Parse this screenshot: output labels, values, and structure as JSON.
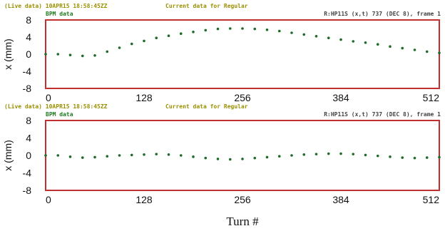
{
  "colors": {
    "status_text": "#9a8f00",
    "series_label": "#1f7a1f",
    "info_text": "#444444",
    "frame": "#c03030",
    "points": "#1f6b2a"
  },
  "panels": [
    {
      "status": "(Live data) 10APR15 18:58:45ZZ",
      "subtitle": "Current data for Regular",
      "series_label": "BPM data",
      "info": "R:HP11S (x,t) 737 (DEC 8), frame 1"
    },
    {
      "status": "(Live data) 10APR15 18:58:45ZZ",
      "subtitle": "Current data for Regular",
      "series_label": "BPM data",
      "info": "R:HP11S (x,t) 737 (DEC 8), frame 1"
    }
  ],
  "chart_data": [
    {
      "type": "scatter",
      "xlabel": "",
      "ylabel": "x (mm)",
      "xlim": [
        0,
        512
      ],
      "ylim": [
        -8,
        8
      ],
      "xticks": [
        "0",
        "128",
        "256",
        "384",
        "512"
      ],
      "yticks": [
        "8",
        "4",
        "0",
        "-4",
        "-8"
      ],
      "grid": false,
      "series": [
        {
          "x": [
            0,
            16,
            32,
            48,
            64,
            80,
            96,
            112,
            128,
            144,
            160,
            176,
            192,
            208,
            224,
            240,
            256,
            272,
            288,
            304,
            320,
            336,
            352,
            368,
            384,
            400,
            416,
            432,
            448,
            464,
            480,
            496,
            512
          ],
          "y": [
            0.0,
            0.0,
            -0.2,
            -0.4,
            -0.3,
            0.6,
            1.5,
            2.4,
            3.1,
            3.8,
            4.3,
            4.8,
            5.2,
            5.6,
            5.9,
            6.0,
            6.0,
            5.9,
            5.7,
            5.4,
            5.0,
            4.6,
            4.2,
            3.8,
            3.4,
            3.0,
            2.7,
            2.3,
            1.8,
            1.4,
            1.0,
            0.6,
            0.3
          ]
        }
      ]
    },
    {
      "type": "scatter",
      "xlabel": "Turn #",
      "ylabel": "x (mm)",
      "xlim": [
        0,
        512
      ],
      "ylim": [
        -8,
        8
      ],
      "xticks": [
        "0",
        "128",
        "256",
        "384",
        "512"
      ],
      "yticks": [
        "8",
        "4",
        "0",
        "-4",
        "-8"
      ],
      "grid": false,
      "series": [
        {
          "x": [
            0,
            16,
            32,
            48,
            64,
            80,
            96,
            112,
            128,
            144,
            160,
            176,
            192,
            208,
            224,
            240,
            256,
            272,
            288,
            304,
            320,
            336,
            352,
            368,
            384,
            400,
            416,
            432,
            448,
            464,
            480,
            496,
            512
          ],
          "y": [
            0.0,
            0.0,
            -0.3,
            -0.5,
            -0.4,
            -0.2,
            0.0,
            0.1,
            0.2,
            0.3,
            0.2,
            0.0,
            -0.3,
            -0.6,
            -0.8,
            -0.9,
            -0.8,
            -0.6,
            -0.4,
            -0.2,
            0.0,
            0.2,
            0.3,
            0.4,
            0.4,
            0.3,
            0.1,
            -0.1,
            -0.3,
            -0.5,
            -0.6,
            -0.5,
            -0.4
          ]
        }
      ]
    }
  ]
}
